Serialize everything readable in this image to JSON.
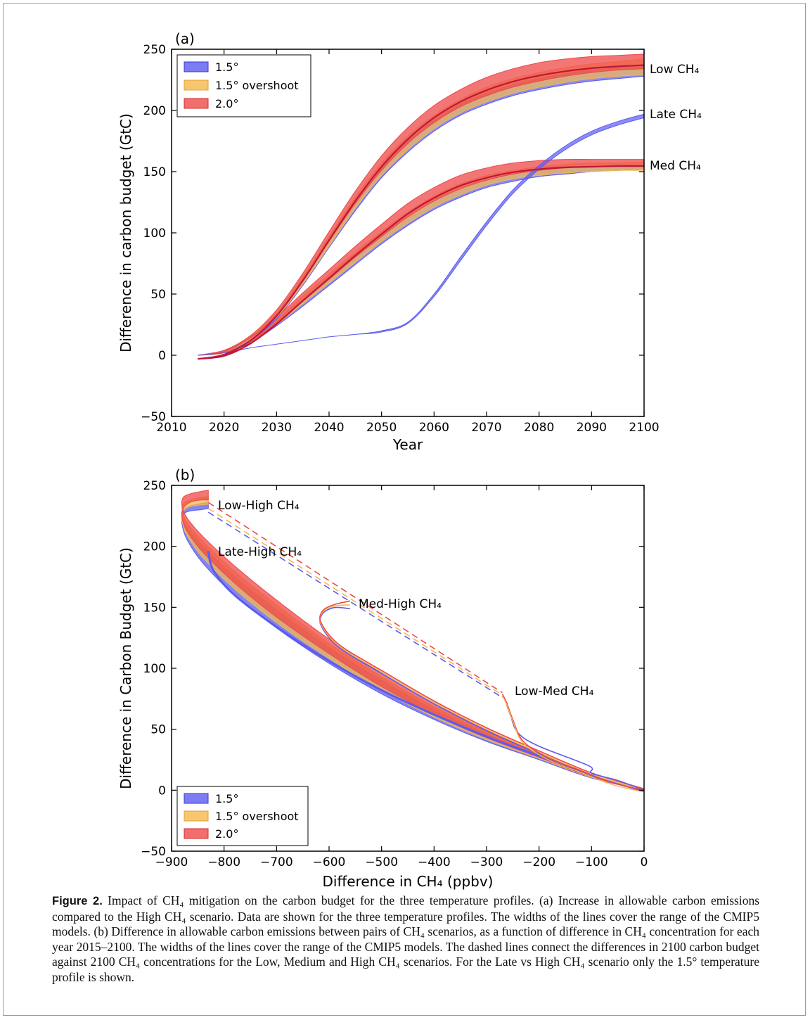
{
  "caption": {
    "label": "Figure 2.",
    "text": " Impact of CH₄ mitigation on the carbon budget for the three temperature profiles. (a) Increase in allowable carbon emissions compared to the High CH₄ scenario. Data are shown for the three temperature profiles. The widths of the lines cover the range of the CMIP5 models. (b) Difference in allowable carbon emissions between pairs of CH₄ scenarios, as a function of difference in CH₄ concentration for each year 2015–2100. The widths of the lines cover the range of the CMIP5 models. The dashed lines connect the differences in 2100 carbon budget against 2100 CH₄ concentrations for the Low, Medium and High CH₄ scenarios. For the Late vs High CH₄ scenario only the 1.5° temperature profile is shown."
  },
  "colors": {
    "blue": "#5b5bf0",
    "orange": "#f5b84c",
    "red": "#ef4848",
    "red_line": "#c0163a"
  },
  "chart_data": [
    {
      "type": "area",
      "panel_label": "(a)",
      "xlabel": "Year",
      "ylabel": "Difference in carbon budget (GtC)",
      "xlim": [
        2010,
        2100
      ],
      "ylim": [
        -50,
        250
      ],
      "xticks": [
        "2010",
        "2020",
        "2030",
        "2040",
        "2050",
        "2060",
        "2070",
        "2080",
        "2090",
        "2100"
      ],
      "yticks": [
        "−50",
        "0",
        "50",
        "100",
        "150",
        "200",
        "250"
      ],
      "legend": {
        "placement": "top-left",
        "entries": [
          "1.5°",
          "1.5° overshoot",
          "2.0°"
        ]
      },
      "grid": false,
      "x": [
        2015,
        2020,
        2025,
        2030,
        2035,
        2040,
        2045,
        2050,
        2055,
        2060,
        2065,
        2070,
        2075,
        2080,
        2085,
        2090,
        2095,
        2100
      ],
      "series": [
        {
          "scenario": "Low CH₄",
          "profile": "1.5°",
          "low": [
            0,
            3,
            12,
            30,
            57,
            88,
            118,
            145,
            166,
            183,
            196,
            205,
            212,
            217,
            221,
            224,
            226,
            228
          ],
          "high": [
            0,
            4,
            14,
            33,
            62,
            94,
            126,
            153,
            175,
            192,
            205,
            214,
            221,
            226,
            230,
            233,
            235,
            236
          ]
        },
        {
          "scenario": "Low CH₄",
          "profile": "1.5° overshoot",
          "low": [
            0,
            3,
            13,
            31,
            58,
            89,
            120,
            147,
            168,
            185,
            198,
            207,
            214,
            219,
            223,
            226,
            228,
            229
          ],
          "high": [
            0,
            4,
            15,
            35,
            64,
            97,
            129,
            157,
            179,
            196,
            209,
            219,
            226,
            231,
            235,
            238,
            240,
            242
          ]
        },
        {
          "scenario": "Low CH₄",
          "profile": "2.0°",
          "low": [
            0,
            3,
            14,
            33,
            61,
            93,
            124,
            151,
            173,
            190,
            203,
            212,
            219,
            224,
            228,
            231,
            233,
            234
          ],
          "high": [
            0,
            4,
            16,
            37,
            67,
            101,
            134,
            163,
            186,
            204,
            217,
            227,
            234,
            239,
            242,
            244,
            245,
            246
          ]
        },
        {
          "scenario": "Med CH₄",
          "profile": "1.5°",
          "low": [
            0,
            2,
            10,
            24,
            40,
            57,
            74,
            91,
            106,
            119,
            129,
            137,
            142,
            146,
            148,
            150,
            151,
            152
          ],
          "high": [
            0,
            3,
            12,
            27,
            45,
            63,
            81,
            98,
            113,
            126,
            136,
            143,
            148,
            151,
            153,
            154,
            155,
            155
          ]
        },
        {
          "scenario": "Med CH₄",
          "profile": "1.5° overshoot",
          "low": [
            0,
            2,
            11,
            25,
            42,
            59,
            76,
            93,
            108,
            121,
            131,
            139,
            144,
            147,
            149,
            150,
            151,
            151
          ],
          "high": [
            0,
            3,
            13,
            29,
            48,
            66,
            84,
            101,
            117,
            130,
            140,
            147,
            151,
            154,
            156,
            157,
            157,
            158
          ]
        },
        {
          "scenario": "Med CH₄",
          "profile": "2.0°",
          "low": [
            0,
            2,
            11,
            26,
            44,
            62,
            80,
            97,
            113,
            126,
            136,
            143,
            148,
            151,
            153,
            154,
            155,
            155
          ],
          "high": [
            0,
            3,
            14,
            31,
            51,
            70,
            89,
            107,
            124,
            137,
            147,
            153,
            157,
            159,
            160,
            160,
            160,
            160
          ]
        },
        {
          "scenario": "Late CH₄",
          "profile": "1.5°",
          "low": [
            0,
            2,
            6,
            9,
            12,
            15,
            17,
            19,
            26,
            48,
            77,
            106,
            132,
            152,
            168,
            180,
            188,
            194
          ],
          "high": [
            0,
            2,
            6,
            9,
            12,
            15,
            17,
            20,
            27,
            50,
            80,
            109,
            135,
            155,
            171,
            183,
            191,
            197
          ]
        }
      ],
      "annotations": [
        "Low CH₄",
        "Late CH₄",
        "Med CH₄"
      ]
    },
    {
      "type": "area",
      "panel_label": "(b)",
      "xlabel": "Difference in CH₄ (ppbv)",
      "ylabel": "Difference in Carbon Budget (GtC)",
      "xlim": [
        -900,
        0
      ],
      "ylim": [
        -50,
        250
      ],
      "xticks": [
        "−900",
        "−800",
        "−700",
        "−600",
        "−500",
        "−400",
        "−300",
        "−200",
        "−100",
        "0"
      ],
      "yticks": [
        "−50",
        "0",
        "50",
        "100",
        "150",
        "200",
        "250"
      ],
      "legend": {
        "placement": "bottom-left",
        "entries": [
          "1.5°",
          "1.5° overshoot",
          "2.0°"
        ]
      },
      "grid": false,
      "main_band": {
        "pairs": "Low-High CH₄",
        "x": [
          0,
          -100,
          -200,
          -300,
          -400,
          -500,
          -600,
          -700,
          -780,
          -840,
          -870,
          -880,
          -878,
          -865,
          -845,
          -830
        ],
        "blue_low": [
          0,
          10,
          25,
          40,
          58,
          79,
          104,
          133,
          160,
          186,
          205,
          218,
          226,
          229,
          230,
          231
        ],
        "blue_high": [
          0,
          12,
          29,
          46,
          66,
          90,
          117,
          148,
          175,
          200,
          215,
          225,
          230,
          233,
          235,
          236
        ],
        "red_low": [
          0,
          11,
          27,
          43,
          62,
          85,
          112,
          142,
          170,
          195,
          212,
          223,
          231,
          236,
          238,
          238
        ],
        "red_high": [
          0,
          13,
          31,
          50,
          71,
          96,
          124,
          156,
          184,
          208,
          223,
          233,
          240,
          243,
          245,
          246
        ]
      },
      "dashed_lines": [
        {
          "profile": "1.5°",
          "x": [
            -830,
            -270
          ],
          "y": [
            228,
            76
          ]
        },
        {
          "profile": "1.5° overshoot",
          "x": [
            -830,
            -270
          ],
          "y": [
            231,
            78
          ]
        },
        {
          "profile": "2.0°",
          "x": [
            -830,
            -270
          ],
          "y": [
            236,
            80
          ]
        }
      ],
      "annotations": [
        "Low-High  CH₄",
        "Late-High  CH₄",
        "Med-High CH₄",
        "Low-Med CH₄"
      ]
    }
  ]
}
